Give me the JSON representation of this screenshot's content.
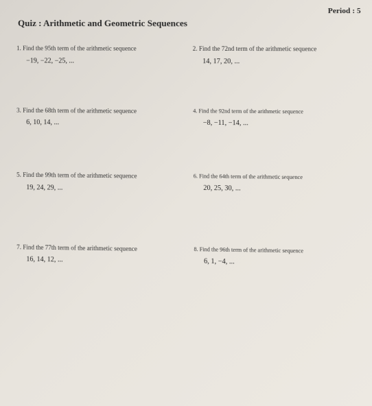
{
  "header": {
    "period_label": "Period :",
    "period_value": "5",
    "title": "Quiz : Arithmetic and Geometric Sequences"
  },
  "questions": [
    {
      "num": "1.",
      "text": "Find the 95th term of the arithmetic sequence",
      "sequence": "−19, −22, −25, ..."
    },
    {
      "num": "2.",
      "text": "Find the 72nd term of the arithmetic sequence",
      "sequence": "14, 17, 20, ..."
    },
    {
      "num": "3.",
      "text": "Find the 68th term of the arithmetic sequence",
      "sequence": "6, 10, 14, ..."
    },
    {
      "num": "4.",
      "text": "Find the 92nd term of the arithmetic sequence",
      "sequence": "−8, −11, −14, ..."
    },
    {
      "num": "5.",
      "text": "Find the 99th term of the arithmetic sequence",
      "sequence": "19, 24, 29, ..."
    },
    {
      "num": "6.",
      "text": "Find the 64th term of the arithmetic sequence",
      "sequence": "20, 25, 30, ..."
    },
    {
      "num": "7.",
      "text": "Find the 77th term of the arithmetic sequence",
      "sequence": "16, 14, 12, ..."
    },
    {
      "num": "8.",
      "text": "Find the 96th term of the arithmetic sequence",
      "sequence": "6, 1, −4, ..."
    }
  ]
}
